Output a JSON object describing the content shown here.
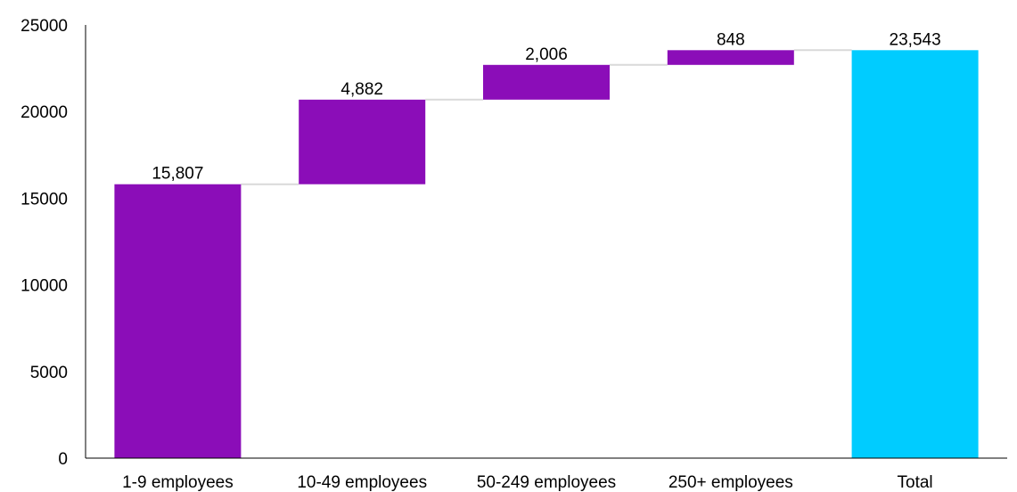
{
  "chart_data": {
    "type": "bar",
    "subtype": "waterfall",
    "categories": [
      "1-9 employees",
      "10-49 employees",
      "50-249 employees",
      "250+ employees",
      "Total"
    ],
    "values": [
      15807,
      4882,
      2006,
      848,
      23543
    ],
    "value_labels": [
      "15,807",
      "4,882",
      "2,006",
      "848",
      "23,543"
    ],
    "is_total": [
      false,
      false,
      false,
      false,
      true
    ],
    "ylim": [
      0,
      25000
    ],
    "yticks": [
      "0",
      "5000",
      "10000",
      "15000",
      "20000",
      "25000"
    ],
    "title": "",
    "xlabel": "",
    "ylabel": "",
    "grid": false,
    "colors": {
      "increase": "#8B0DB8",
      "total": "#00CCFF",
      "connector": "#D9D9D9",
      "axis": "#000000"
    }
  }
}
